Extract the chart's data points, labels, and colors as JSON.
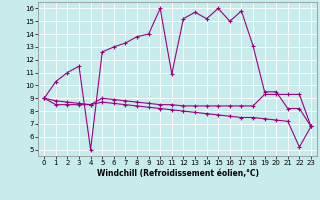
{
  "xlabel": "Windchill (Refroidissement éolien,°C)",
  "background_color": "#c8ecec",
  "line_color": "#9b0080",
  "xlim": [
    -0.5,
    23.5
  ],
  "ylim": [
    4.5,
    16.5
  ],
  "xticks": [
    0,
    1,
    2,
    3,
    4,
    5,
    6,
    7,
    8,
    9,
    10,
    11,
    12,
    13,
    14,
    15,
    16,
    17,
    18,
    19,
    20,
    21,
    22,
    23
  ],
  "yticks": [
    5,
    6,
    7,
    8,
    9,
    10,
    11,
    12,
    13,
    14,
    15,
    16
  ],
  "series1_x": [
    0,
    1,
    2,
    3,
    4,
    5,
    6,
    7,
    8,
    9,
    10,
    11,
    12,
    13,
    14,
    15,
    16,
    17,
    18,
    19,
    20,
    21,
    22,
    23
  ],
  "series1_y": [
    9.0,
    10.3,
    11.0,
    11.5,
    5.0,
    12.6,
    13.0,
    13.3,
    13.8,
    14.0,
    16.0,
    10.9,
    15.2,
    15.7,
    15.2,
    16.0,
    15.0,
    15.8,
    13.1,
    9.5,
    9.5,
    8.2,
    8.2,
    6.8
  ],
  "series2_x": [
    0,
    1,
    2,
    3,
    4,
    5,
    6,
    7,
    8,
    9,
    10,
    11,
    12,
    13,
    14,
    15,
    16,
    17,
    18,
    19,
    20,
    21,
    22,
    23
  ],
  "series2_y": [
    9.0,
    8.5,
    8.5,
    8.5,
    8.5,
    8.7,
    8.6,
    8.5,
    8.4,
    8.3,
    8.2,
    8.1,
    8.0,
    7.9,
    7.8,
    7.7,
    7.6,
    7.5,
    7.5,
    7.4,
    7.3,
    7.2,
    5.2,
    6.8
  ],
  "series3_x": [
    0,
    1,
    2,
    3,
    4,
    5,
    6,
    7,
    8,
    9,
    10,
    11,
    12,
    13,
    14,
    15,
    16,
    17,
    18,
    19,
    20,
    21,
    22,
    23
  ],
  "series3_y": [
    9.0,
    8.8,
    8.7,
    8.6,
    8.5,
    9.0,
    8.9,
    8.8,
    8.7,
    8.6,
    8.5,
    8.5,
    8.4,
    8.4,
    8.4,
    8.4,
    8.4,
    8.4,
    8.4,
    9.3,
    9.3,
    9.3,
    9.3,
    6.8
  ]
}
